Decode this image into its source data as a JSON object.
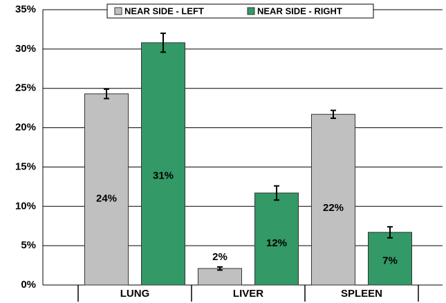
{
  "chart_data": {
    "type": "bar",
    "categories": [
      "LUNG",
      "LIVER",
      "SPLEEN"
    ],
    "series": [
      {
        "name": "NEAR SIDE - LEFT",
        "color": "#c0c0c0",
        "values": [
          24.3,
          2.1,
          21.7
        ],
        "errors": [
          0.6,
          0.2,
          0.5
        ],
        "value_labels": [
          "24%",
          "2%",
          "22%"
        ]
      },
      {
        "name": "NEAR SIDE - RIGHT",
        "color": "#339966",
        "values": [
          30.8,
          11.7,
          6.7
        ],
        "errors": [
          1.2,
          0.9,
          0.7
        ],
        "value_labels": [
          "31%",
          "12%",
          "7%"
        ]
      }
    ],
    "ylim": [
      0,
      35
    ],
    "yticks": [
      {
        "value": 0,
        "label": "0%"
      },
      {
        "value": 5,
        "label": "5%"
      },
      {
        "value": 10,
        "label": "10%"
      },
      {
        "value": 15,
        "label": "15%"
      },
      {
        "value": 20,
        "label": "20%"
      },
      {
        "value": 25,
        "label": "25%"
      },
      {
        "value": 30,
        "label": "30%"
      },
      {
        "value": 35,
        "label": "35%"
      }
    ],
    "grid": true,
    "legend": "top"
  }
}
